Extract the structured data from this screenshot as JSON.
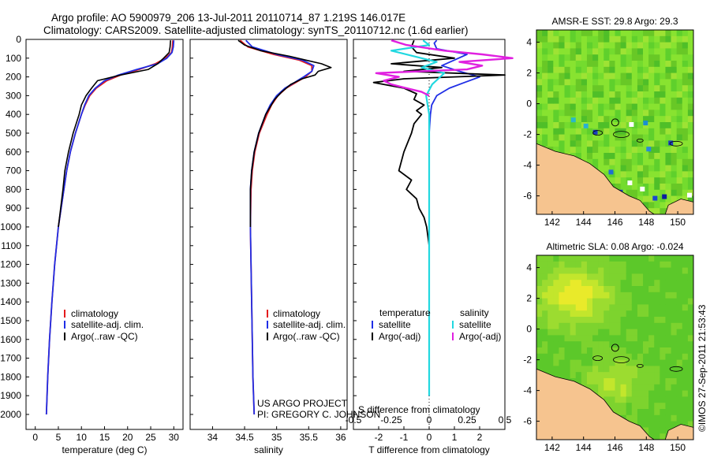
{
  "header": {
    "line1": "Argo profile: AO 5900979_206 13-Jul-2011 20110714_87 1.219S 146.017E",
    "line2": "Climatology: CARS2009. Satellite-adjusted climatology: synTS_20110712.nc (1.6d earlier)"
  },
  "colors": {
    "climatology": "#e41a1c",
    "satellite": "#1f2ee6",
    "argo": "#000000",
    "satellite_s": "#22d8e0",
    "argo_s": "#e020e0",
    "land": "#f6c48f"
  },
  "depth_ticks": [
    "0",
    "100",
    "200",
    "300",
    "400",
    "500",
    "600",
    "700",
    "800",
    "900",
    "1000",
    "1100",
    "1200",
    "1300",
    "1400",
    "1500",
    "1600",
    "1700",
    "1800",
    "1900",
    "2000"
  ],
  "chart_data": [
    {
      "type": "line",
      "xlabel": "temperature (deg C)",
      "xticks": [
        "0",
        "5",
        "10",
        "15",
        "20",
        "25",
        "30"
      ],
      "xlim": [
        -2,
        32
      ],
      "ylim": [
        2080,
        0
      ],
      "legend": [
        "climatology",
        "satellite-adj. clim.",
        "Argo(..raw -QC)"
      ],
      "series": [
        {
          "name": "climatology",
          "y": [
            5,
            40,
            70,
            100,
            130,
            160,
            190,
            220,
            260,
            300,
            350,
            400,
            500,
            600,
            700,
            800,
            1000,
            1200,
            1400,
            1600,
            1800,
            2000
          ],
          "values": [
            29.8,
            29.7,
            29.5,
            28.2,
            26.0,
            22.5,
            18.5,
            15.5,
            13.2,
            11.8,
            10.8,
            10.0,
            8.7,
            7.6,
            6.8,
            6.2,
            5.0,
            4.2,
            3.6,
            3.1,
            2.7,
            2.4
          ]
        },
        {
          "name": "satellite-adj. clim.",
          "y": [
            5,
            40,
            70,
            100,
            130,
            160,
            190,
            220,
            260,
            300,
            350,
            400,
            500,
            600,
            700,
            800,
            1000,
            1200,
            1400,
            1600,
            1800,
            2000
          ],
          "values": [
            30.0,
            29.9,
            29.6,
            28.5,
            26.5,
            22.0,
            18.0,
            15.0,
            13.0,
            11.6,
            10.7,
            10.0,
            8.7,
            7.6,
            6.8,
            6.2,
            5.0,
            4.2,
            3.6,
            3.1,
            2.7,
            2.4
          ]
        },
        {
          "name": "Argo(..raw -QC)",
          "y": [
            5,
            40,
            70,
            100,
            130,
            160,
            190,
            220,
            260,
            300,
            350,
            400,
            500,
            600,
            700,
            800,
            1000
          ],
          "values": [
            29.3,
            29.2,
            29.0,
            27.8,
            26.5,
            24.5,
            18.5,
            13.5,
            12.2,
            11.0,
            10.0,
            9.5,
            8.2,
            7.2,
            6.4,
            6.0,
            5.0
          ]
        }
      ]
    },
    {
      "type": "line",
      "xlabel": "salinity",
      "xticks": [
        "34",
        "34.5",
        "35",
        "35.5",
        "36"
      ],
      "xlim": [
        33.65,
        36.1
      ],
      "ylim": [
        2080,
        0
      ],
      "legend": [
        "climatology",
        "satellite-adj. clim.",
        "Argo(..raw -QC)"
      ],
      "series": [
        {
          "name": "climatology",
          "y": [
            5,
            40,
            80,
            110,
            140,
            170,
            200,
            230,
            260,
            300,
            350,
            400,
            500,
            600,
            700,
            800,
            1000,
            1200,
            1400,
            1600,
            1800,
            2000
          ],
          "values": [
            34.43,
            34.55,
            34.95,
            35.35,
            35.55,
            35.55,
            35.45,
            35.3,
            35.15,
            35.02,
            34.92,
            34.85,
            34.73,
            34.66,
            34.62,
            34.6,
            34.59,
            34.6,
            34.61,
            34.62,
            34.63,
            34.65
          ]
        },
        {
          "name": "satellite-adj. clim.",
          "y": [
            5,
            40,
            80,
            110,
            140,
            170,
            200,
            230,
            260,
            300,
            350,
            400,
            500,
            600,
            700,
            800,
            1000,
            1200,
            1400,
            1600,
            1800,
            2000
          ],
          "values": [
            34.52,
            34.62,
            35.0,
            35.4,
            35.58,
            35.55,
            35.42,
            35.28,
            35.13,
            35.0,
            34.9,
            34.83,
            34.72,
            34.65,
            34.61,
            34.59,
            34.59,
            34.6,
            34.61,
            34.62,
            34.63,
            34.65
          ]
        },
        {
          "name": "Argo(..raw -QC)",
          "y": [
            5,
            30,
            60,
            90,
            110,
            130,
            150,
            170,
            190,
            210,
            240,
            280,
            320,
            360,
            400,
            500,
            600,
            700,
            800,
            1000
          ],
          "values": [
            34.4,
            34.5,
            34.75,
            35.2,
            35.45,
            35.7,
            35.85,
            35.65,
            35.6,
            35.4,
            35.22,
            35.08,
            34.97,
            34.9,
            34.83,
            34.72,
            34.65,
            34.61,
            34.59,
            34.59
          ]
        }
      ]
    },
    {
      "type": "line",
      "xlabel": "T difference from climatology",
      "xlabel2": "S difference from climatology",
      "xticks": [
        "-2",
        "-1",
        "0",
        "1",
        "2"
      ],
      "xticks2": [
        "-0.5",
        "-0.25",
        "0",
        "0.25",
        "0.5"
      ],
      "xlim": [
        -3.0,
        3.0
      ],
      "ylim": [
        2080,
        0
      ],
      "legend_titles": [
        "temperature",
        "salinity"
      ],
      "legend": [
        "satellite",
        "Argo(-adj)",
        "satellite",
        "Argo(-adj)"
      ],
      "series": [
        {
          "name": "temperature satellite",
          "y": [
            5,
            20,
            50,
            80,
            110,
            140,
            170,
            200,
            230,
            260,
            300,
            350,
            400,
            500,
            600,
            700,
            800,
            1000,
            1200,
            1400,
            1600,
            1800,
            1900
          ],
          "values": [
            0.3,
            0.2,
            0.3,
            1.5,
            1.0,
            0.5,
            1.2,
            2.0,
            1.4,
            0.8,
            0.3,
            0.1,
            0.05,
            0.0,
            0.0,
            0.0,
            0.0,
            0.0,
            0.0,
            0.0,
            0.0,
            0.0,
            0.0
          ]
        },
        {
          "name": "temperature Argo(-adj)",
          "y": [
            5,
            40,
            70,
            100,
            130,
            150,
            170,
            190,
            210,
            230,
            260,
            290,
            320,
            350,
            380,
            400,
            450,
            500,
            600,
            700,
            750,
            800,
            850,
            900,
            950,
            1000,
            1100,
            1200
          ],
          "values": [
            -0.6,
            -0.7,
            -0.5,
            1.0,
            -1.5,
            0.5,
            -1.0,
            3.0,
            -1.0,
            -2.2,
            -1.0,
            -0.5,
            -0.6,
            -0.2,
            -0.5,
            -0.3,
            -0.6,
            -0.7,
            -1.0,
            -1.2,
            -0.7,
            -0.9,
            -0.5,
            -0.4,
            -0.2,
            -0.1,
            0.0,
            0.0
          ]
        },
        {
          "name": "salinity satellite",
          "y": [
            5,
            30,
            60,
            90,
            120,
            150,
            180,
            210,
            240,
            270,
            300,
            350,
            400,
            500,
            600,
            800,
            1000,
            1200,
            1500,
            1800,
            1900
          ],
          "values": [
            -0.04,
            0.0,
            -0.25,
            -0.1,
            0.05,
            -0.05,
            0.1,
            0.06,
            0.02,
            0.0,
            -0.02,
            -0.01,
            0.0,
            0.0,
            0.0,
            0.0,
            0.0,
            0.0,
            0.0,
            0.0,
            0.0
          ]
        },
        {
          "name": "salinity Argo(-adj)",
          "y": [
            5,
            30,
            60,
            80,
            100,
            120,
            140,
            160,
            180,
            200,
            220,
            240,
            260,
            280,
            300
          ],
          "values": [
            -0.25,
            -0.15,
            0.1,
            0.35,
            0.55,
            0.2,
            0.35,
            0.25,
            -0.35,
            -0.2,
            -0.3,
            -0.25,
            -0.15,
            -0.05,
            0.0
          ]
        }
      ]
    },
    {
      "type": "heatmap",
      "title": "AMSR-E SST: 29.8 Argo: 29.3",
      "xticks": [
        "142",
        "144",
        "146",
        "148",
        "150"
      ],
      "yticks": [
        "4",
        "2",
        "0",
        "-2",
        "-4",
        "-6"
      ],
      "xlim": [
        141.0,
        151.0
      ],
      "ylim": [
        -7.2,
        4.8
      ]
    },
    {
      "type": "heatmap",
      "title": "Altimetric SLA: 0.08 Argo: -0.024",
      "xticks": [
        "142",
        "144",
        "146",
        "148",
        "150"
      ],
      "yticks": [
        "4",
        "2",
        "0",
        "-2",
        "-4",
        "-6"
      ],
      "xlim": [
        141.0,
        151.0
      ],
      "ylim": [
        -7.2,
        4.8
      ]
    }
  ],
  "footer": {
    "project1": "US ARGO PROJECT",
    "project2": "PI: GREGORY C. JOHNSON",
    "timestamp": "©IMOS 27-Sep-2011 21:53:43"
  }
}
